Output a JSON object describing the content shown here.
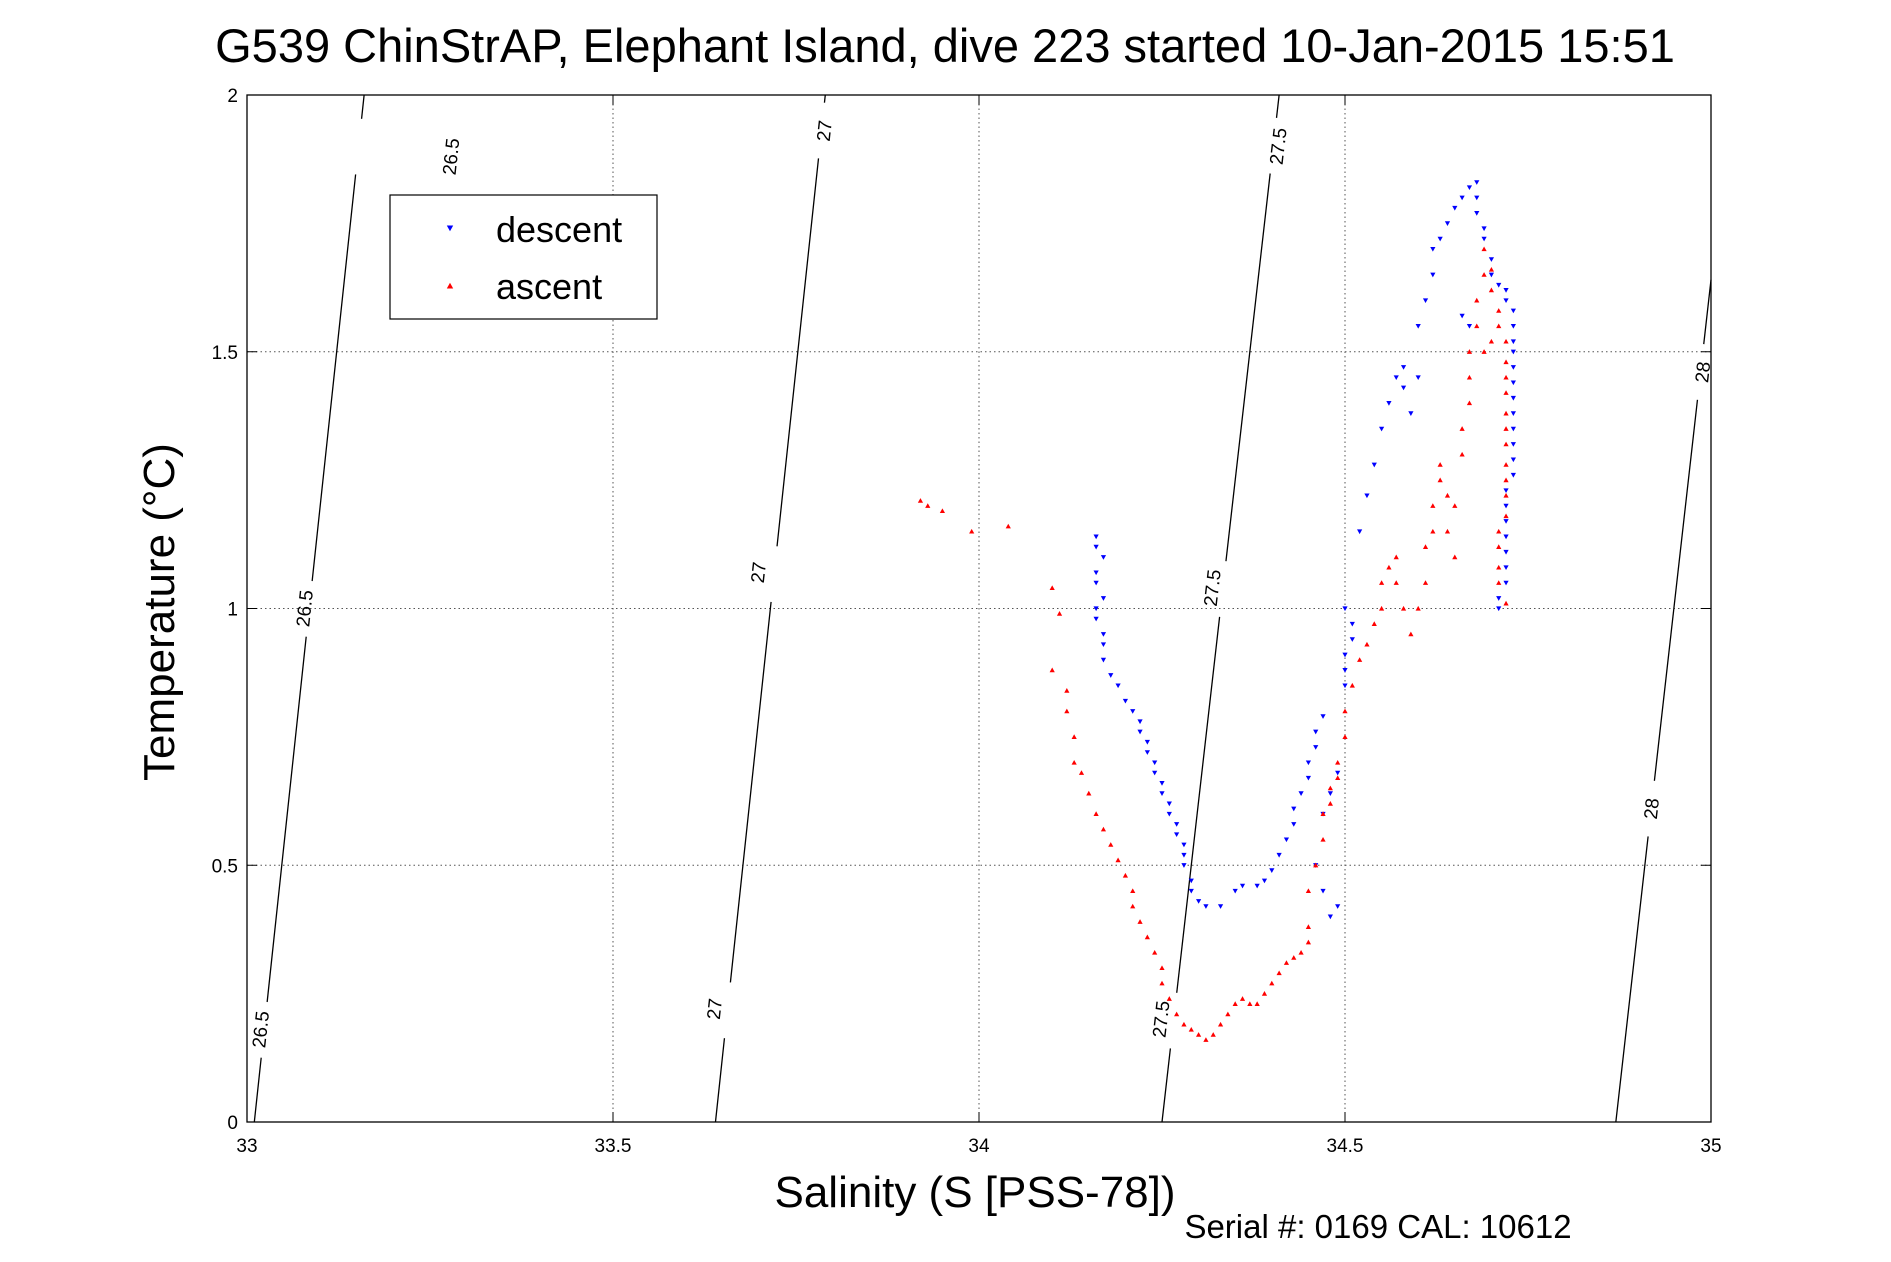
{
  "chart_data": {
    "type": "scatter",
    "title": "G539 ChinStrAP, Elephant Island, dive 223 started 10-Jan-2015 15:51",
    "xlabel": "Salinity (S [PSS-78])",
    "ylabel": "Temperature (°C)",
    "xlim": [
      33,
      35
    ],
    "ylim": [
      0,
      2
    ],
    "xticks": [
      33,
      33.5,
      34,
      34.5,
      35
    ],
    "xtick_labels": [
      "33",
      "33.5",
      "34",
      "34.5",
      "35"
    ],
    "yticks": [
      0,
      0.5,
      1,
      1.5,
      2
    ],
    "ytick_labels": [
      "0",
      "0.5",
      "1",
      "1.5",
      "2"
    ],
    "grid": true,
    "legend_position": "top-left",
    "footnote": "Serial #: 0169 CAL: 10612",
    "density_contours": [
      {
        "level": "26.5",
        "points": [
          [
            33.01,
            0
          ],
          [
            33.16,
            2
          ]
        ],
        "labels": [
          {
            "x": 33.28,
            "y": 1.88
          },
          {
            "x": 33.08,
            "y": 1.0
          },
          {
            "x": 33.02,
            "y": 0.18
          }
        ]
      },
      {
        "level": "27",
        "points": [
          [
            33.64,
            0
          ],
          [
            33.79,
            2
          ]
        ],
        "labels": [
          {
            "x": 33.79,
            "y": 1.93
          },
          {
            "x": 33.7,
            "y": 1.07
          },
          {
            "x": 33.64,
            "y": 0.22
          }
        ]
      },
      {
        "level": "27.5",
        "points": [
          [
            34.25,
            0
          ],
          [
            34.41,
            2
          ]
        ],
        "labels": [
          {
            "x": 34.41,
            "y": 1.9
          },
          {
            "x": 34.32,
            "y": 1.04
          },
          {
            "x": 34.25,
            "y": 0.2
          }
        ]
      },
      {
        "level": "28",
        "points": [
          [
            34.87,
            0
          ],
          [
            35.0,
            1.64
          ]
        ],
        "labels": [
          {
            "x": 34.99,
            "y": 1.46
          },
          {
            "x": 34.92,
            "y": 0.61
          }
        ]
      }
    ],
    "series": [
      {
        "name": "descent",
        "color": "#0000ff",
        "marker": "triangle-down",
        "points": [
          [
            34.16,
            1.14
          ],
          [
            34.16,
            1.12
          ],
          [
            34.17,
            1.1
          ],
          [
            34.16,
            1.07
          ],
          [
            34.16,
            1.05
          ],
          [
            34.17,
            1.02
          ],
          [
            34.16,
            1.0
          ],
          [
            34.16,
            0.98
          ],
          [
            34.17,
            0.95
          ],
          [
            34.17,
            0.93
          ],
          [
            34.17,
            0.9
          ],
          [
            34.18,
            0.87
          ],
          [
            34.19,
            0.85
          ],
          [
            34.2,
            0.82
          ],
          [
            34.21,
            0.8
          ],
          [
            34.22,
            0.78
          ],
          [
            34.22,
            0.76
          ],
          [
            34.23,
            0.74
          ],
          [
            34.23,
            0.72
          ],
          [
            34.24,
            0.7
          ],
          [
            34.24,
            0.68
          ],
          [
            34.25,
            0.66
          ],
          [
            34.25,
            0.64
          ],
          [
            34.26,
            0.62
          ],
          [
            34.26,
            0.6
          ],
          [
            34.27,
            0.58
          ],
          [
            34.27,
            0.56
          ],
          [
            34.28,
            0.54
          ],
          [
            34.28,
            0.52
          ],
          [
            34.28,
            0.5
          ],
          [
            34.29,
            0.47
          ],
          [
            34.29,
            0.45
          ],
          [
            34.3,
            0.43
          ],
          [
            34.31,
            0.42
          ],
          [
            34.33,
            0.42
          ],
          [
            34.35,
            0.45
          ],
          [
            34.36,
            0.46
          ],
          [
            34.38,
            0.46
          ],
          [
            34.39,
            0.47
          ],
          [
            34.4,
            0.49
          ],
          [
            34.41,
            0.52
          ],
          [
            34.42,
            0.55
          ],
          [
            34.43,
            0.58
          ],
          [
            34.43,
            0.61
          ],
          [
            34.44,
            0.64
          ],
          [
            34.45,
            0.67
          ],
          [
            34.45,
            0.7
          ],
          [
            34.46,
            0.73
          ],
          [
            34.46,
            0.76
          ],
          [
            34.47,
            0.79
          ],
          [
            34.46,
            0.5
          ],
          [
            34.47,
            0.45
          ],
          [
            34.48,
            0.4
          ],
          [
            34.49,
            0.42
          ],
          [
            34.47,
            0.6
          ],
          [
            34.48,
            0.64
          ],
          [
            34.49,
            0.68
          ],
          [
            34.5,
            0.85
          ],
          [
            34.5,
            0.88
          ],
          [
            34.5,
            0.91
          ],
          [
            34.51,
            0.94
          ],
          [
            34.51,
            0.97
          ],
          [
            34.5,
            1.0
          ],
          [
            34.52,
            1.15
          ],
          [
            34.53,
            1.22
          ],
          [
            34.54,
            1.28
          ],
          [
            34.55,
            1.35
          ],
          [
            34.56,
            1.4
          ],
          [
            34.57,
            1.45
          ],
          [
            34.58,
            1.47
          ],
          [
            34.58,
            1.43
          ],
          [
            34.59,
            1.38
          ],
          [
            34.6,
            1.45
          ],
          [
            34.6,
            1.55
          ],
          [
            34.61,
            1.6
          ],
          [
            34.62,
            1.65
          ],
          [
            34.62,
            1.7
          ],
          [
            34.63,
            1.72
          ],
          [
            34.64,
            1.75
          ],
          [
            34.65,
            1.78
          ],
          [
            34.66,
            1.8
          ],
          [
            34.67,
            1.82
          ],
          [
            34.68,
            1.83
          ],
          [
            34.68,
            1.8
          ],
          [
            34.68,
            1.77
          ],
          [
            34.69,
            1.74
          ],
          [
            34.69,
            1.72
          ],
          [
            34.7,
            1.68
          ],
          [
            34.7,
            1.65
          ],
          [
            34.71,
            1.63
          ],
          [
            34.72,
            1.62
          ],
          [
            34.72,
            1.6
          ],
          [
            34.73,
            1.58
          ],
          [
            34.73,
            1.55
          ],
          [
            34.73,
            1.52
          ],
          [
            34.73,
            1.5
          ],
          [
            34.73,
            1.47
          ],
          [
            34.73,
            1.44
          ],
          [
            34.73,
            1.41
          ],
          [
            34.73,
            1.38
          ],
          [
            34.73,
            1.35
          ],
          [
            34.73,
            1.32
          ],
          [
            34.73,
            1.29
          ],
          [
            34.73,
            1.26
          ],
          [
            34.72,
            1.23
          ],
          [
            34.72,
            1.2
          ],
          [
            34.72,
            1.17
          ],
          [
            34.72,
            1.14
          ],
          [
            34.72,
            1.11
          ],
          [
            34.72,
            1.08
          ],
          [
            34.72,
            1.05
          ],
          [
            34.71,
            1.02
          ],
          [
            34.71,
            1.0
          ],
          [
            34.67,
            1.55
          ],
          [
            34.66,
            1.57
          ]
        ]
      },
      {
        "name": "ascent",
        "color": "#ff0000",
        "marker": "triangle-up",
        "points": [
          [
            33.92,
            1.21
          ],
          [
            33.93,
            1.2
          ],
          [
            33.95,
            1.19
          ],
          [
            33.99,
            1.15
          ],
          [
            34.04,
            1.16
          ],
          [
            34.1,
            1.04
          ],
          [
            34.11,
            0.99
          ],
          [
            34.1,
            0.88
          ],
          [
            34.12,
            0.84
          ],
          [
            34.12,
            0.8
          ],
          [
            34.13,
            0.75
          ],
          [
            34.13,
            0.7
          ],
          [
            34.14,
            0.68
          ],
          [
            34.15,
            0.64
          ],
          [
            34.16,
            0.6
          ],
          [
            34.17,
            0.57
          ],
          [
            34.18,
            0.54
          ],
          [
            34.19,
            0.51
          ],
          [
            34.2,
            0.48
          ],
          [
            34.21,
            0.45
          ],
          [
            34.21,
            0.42
          ],
          [
            34.22,
            0.39
          ],
          [
            34.23,
            0.36
          ],
          [
            34.24,
            0.33
          ],
          [
            34.25,
            0.3
          ],
          [
            34.25,
            0.27
          ],
          [
            34.26,
            0.24
          ],
          [
            34.27,
            0.21
          ],
          [
            34.28,
            0.19
          ],
          [
            34.29,
            0.18
          ],
          [
            34.3,
            0.17
          ],
          [
            34.31,
            0.16
          ],
          [
            34.32,
            0.17
          ],
          [
            34.33,
            0.19
          ],
          [
            34.34,
            0.21
          ],
          [
            34.35,
            0.23
          ],
          [
            34.36,
            0.24
          ],
          [
            34.37,
            0.23
          ],
          [
            34.38,
            0.23
          ],
          [
            34.39,
            0.25
          ],
          [
            34.4,
            0.27
          ],
          [
            34.41,
            0.29
          ],
          [
            34.42,
            0.31
          ],
          [
            34.43,
            0.32
          ],
          [
            34.44,
            0.33
          ],
          [
            34.45,
            0.35
          ],
          [
            34.45,
            0.38
          ],
          [
            34.45,
            0.45
          ],
          [
            34.46,
            0.5
          ],
          [
            34.47,
            0.55
          ],
          [
            34.47,
            0.6
          ],
          [
            34.48,
            0.62
          ],
          [
            34.48,
            0.65
          ],
          [
            34.49,
            0.67
          ],
          [
            34.49,
            0.7
          ],
          [
            34.5,
            0.75
          ],
          [
            34.5,
            0.8
          ],
          [
            34.51,
            0.85
          ],
          [
            34.52,
            0.9
          ],
          [
            34.53,
            0.93
          ],
          [
            34.54,
            0.97
          ],
          [
            34.55,
            1.0
          ],
          [
            34.55,
            1.05
          ],
          [
            34.56,
            1.08
          ],
          [
            34.57,
            1.1
          ],
          [
            34.57,
            1.05
          ],
          [
            34.58,
            1.0
          ],
          [
            34.59,
            0.95
          ],
          [
            34.6,
            1.0
          ],
          [
            34.61,
            1.05
          ],
          [
            34.61,
            1.12
          ],
          [
            34.62,
            1.15
          ],
          [
            34.62,
            1.2
          ],
          [
            34.63,
            1.25
          ],
          [
            34.63,
            1.28
          ],
          [
            34.64,
            1.22
          ],
          [
            34.64,
            1.15
          ],
          [
            34.65,
            1.1
          ],
          [
            34.65,
            1.2
          ],
          [
            34.66,
            1.3
          ],
          [
            34.66,
            1.35
          ],
          [
            34.67,
            1.4
          ],
          [
            34.67,
            1.45
          ],
          [
            34.67,
            1.5
          ],
          [
            34.68,
            1.55
          ],
          [
            34.68,
            1.6
          ],
          [
            34.69,
            1.65
          ],
          [
            34.69,
            1.7
          ],
          [
            34.7,
            1.66
          ],
          [
            34.7,
            1.62
          ],
          [
            34.71,
            1.58
          ],
          [
            34.71,
            1.55
          ],
          [
            34.72,
            1.52
          ],
          [
            34.72,
            1.48
          ],
          [
            34.72,
            1.45
          ],
          [
            34.72,
            1.42
          ],
          [
            34.72,
            1.38
          ],
          [
            34.72,
            1.35
          ],
          [
            34.72,
            1.32
          ],
          [
            34.72,
            1.28
          ],
          [
            34.72,
            1.25
          ],
          [
            34.72,
            1.22
          ],
          [
            34.72,
            1.18
          ],
          [
            34.71,
            1.15
          ],
          [
            34.71,
            1.12
          ],
          [
            34.71,
            1.08
          ],
          [
            34.71,
            1.05
          ],
          [
            34.72,
            1.01
          ],
          [
            34.69,
            1.5
          ],
          [
            34.7,
            1.52
          ]
        ]
      }
    ]
  }
}
